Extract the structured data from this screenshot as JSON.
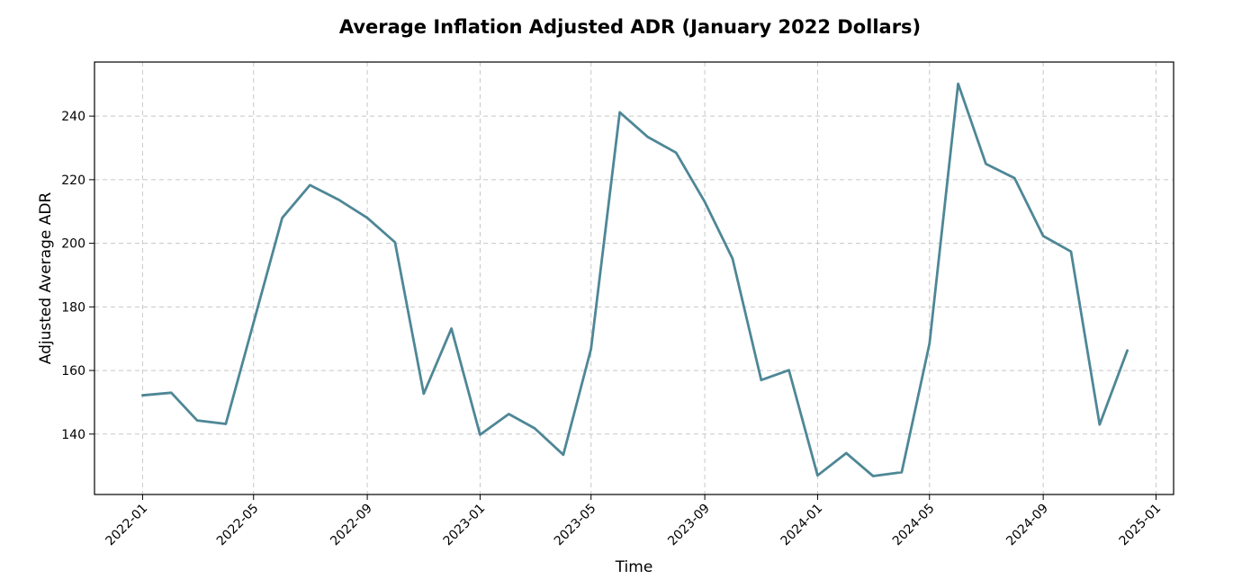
{
  "chart_data": {
    "type": "line",
    "title": "Average Inflation Adjusted ADR (January 2022 Dollars)",
    "xlabel": "Time",
    "ylabel": "Adjusted Average ADR",
    "x_ticks": [
      "2022-01",
      "2022-05",
      "2022-09",
      "2023-01",
      "2023-05",
      "2023-09",
      "2024-01",
      "2024-05",
      "2024-09",
      "2025-01"
    ],
    "y_ticks": [
      140,
      160,
      180,
      200,
      220,
      240
    ],
    "xlim": [
      "2021-11-10",
      "2025-01-20"
    ],
    "ylim": [
      121,
      257
    ],
    "grid": true,
    "line_color": "#4e8796",
    "series": [
      {
        "x": [
          "2022-01",
          "2022-02",
          "2022-03",
          "2022-04",
          "2022-05",
          "2022-06",
          "2022-07",
          "2022-08",
          "2022-09",
          "2022-10",
          "2022-11",
          "2022-12",
          "2023-01",
          "2023-02",
          "2023-03",
          "2023-04",
          "2023-05",
          "2023-06",
          "2023-07",
          "2023-08",
          "2023-09",
          "2023-10",
          "2023-11",
          "2023-12",
          "2024-01",
          "2024-02",
          "2024-03",
          "2024-04",
          "2024-05",
          "2024-06",
          "2024-07",
          "2024-08",
          "2024-09",
          "2024-10",
          "2024-11",
          "2024-12"
        ],
        "values": [
          152.2,
          153.0,
          144.3,
          143.2,
          175.0,
          208.0,
          218.3,
          213.7,
          208.0,
          200.3,
          152.7,
          173.2,
          139.8,
          146.3,
          141.8,
          133.5,
          166.8,
          241.2,
          233.5,
          228.5,
          213.0,
          195.2,
          157.0,
          160.1,
          127.0,
          134.0,
          126.8,
          128.0,
          168.5,
          250.2,
          225.0,
          220.5,
          202.3,
          197.4,
          143.0,
          166.3
        ]
      }
    ]
  }
}
